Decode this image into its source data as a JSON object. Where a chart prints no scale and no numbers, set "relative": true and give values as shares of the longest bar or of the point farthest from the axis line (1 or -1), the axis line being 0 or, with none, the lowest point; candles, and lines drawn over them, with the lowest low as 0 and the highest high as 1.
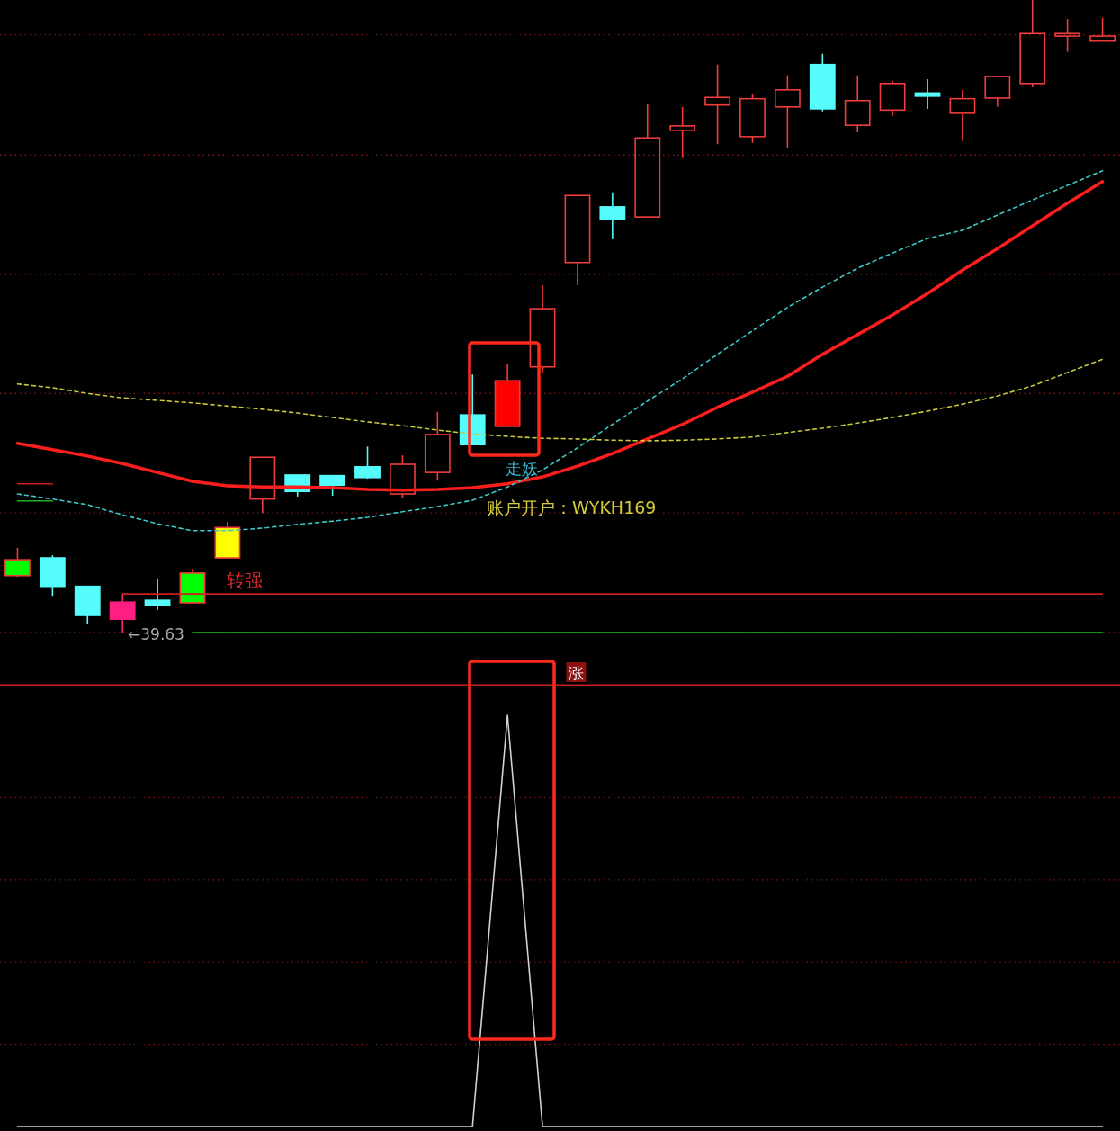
{
  "chart_data": [
    {
      "type": "candlestick",
      "relative": true,
      "categories": [
        null,
        null,
        null,
        null,
        null,
        null,
        null,
        null,
        null,
        null,
        null,
        null,
        null,
        null,
        null,
        null,
        null,
        null,
        null,
        null,
        null,
        null,
        null,
        null,
        null,
        null,
        null,
        null,
        null,
        null,
        null,
        null
      ],
      "ohlc": [
        [
          0.09,
          0.134,
          0.088,
          0.115
        ],
        [
          0.118,
          0.122,
          0.058,
          0.073
        ],
        [
          0.073,
          0.073,
          0.014,
          0.027
        ],
        [
          0.048,
          0.06,
          0,
          0.021
        ],
        [
          0.051,
          0.084,
          0.036,
          0.043
        ],
        [
          0.047,
          0.101,
          0.047,
          0.094
        ],
        [
          0.118,
          0.175,
          0.118,
          0.166
        ],
        [
          0.211,
          0.277,
          0.189,
          0.277
        ],
        [
          0.249,
          0.249,
          0.215,
          0.223
        ],
        [
          0.248,
          0.249,
          0.216,
          0.233
        ],
        [
          0.262,
          0.294,
          0.243,
          0.245
        ],
        [
          0.219,
          0.28,
          0.213,
          0.266
        ],
        [
          0.253,
          0.349,
          0.24,
          0.313
        ],
        [
          0.344,
          0.408,
          0.297,
          0.297
        ],
        [
          0.326,
          0.424,
          0.326,
          0.398
        ],
        [
          0.42,
          0.549,
          0.41,
          0.512
        ],
        [
          0.585,
          0.691,
          0.549,
          0.691
        ],
        [
          0.673,
          0.696,
          0.622,
          0.653
        ],
        [
          0.657,
          0.835,
          0.657,
          0.782
        ],
        [
          0.794,
          0.831,
          0.75,
          0.801
        ],
        [
          0.834,
          0.898,
          0.772,
          0.846
        ],
        [
          0.784,
          0.851,
          0.774,
          0.844
        ],
        [
          0.831,
          0.881,
          0.767,
          0.858
        ],
        [
          0.898,
          0.915,
          0.824,
          0.828
        ],
        [
          0.802,
          0.881,
          0.791,
          0.841
        ],
        [
          0.826,
          0.872,
          0.817,
          0.868
        ],
        [
          0.853,
          0.875,
          0.828,
          0.848
        ],
        [
          0.821,
          0.858,
          0.777,
          0.844
        ],
        [
          0.845,
          0.879,
          0.831,
          0.879
        ],
        [
          0.868,
          1,
          0.862,
          0.947
        ],
        [
          0.943,
          0.97,
          0.918,
          0.947
        ],
        [
          0.935,
          0.972,
          0.935,
          0.943
        ]
      ],
      "color": "#f03c3c",
      "colors": [
        "#00ff00",
        "#54fcfc",
        "#54fcfc",
        "#ff1e82",
        "#54fcfc",
        "#00ff00",
        "#ffff00",
        null,
        "#54fcfc",
        "#54fcfc",
        "#54fcfc",
        null,
        null,
        "#54fcfc",
        "#ff0000",
        null,
        null,
        "#54fcfc",
        null,
        null,
        null,
        null,
        null,
        "#54fcfc",
        null,
        null,
        "#54fcfc",
        null,
        null,
        null,
        null,
        null
      ],
      "series": [
        {
          "type": "line",
          "color": "#ff1e1e",
          "values": [
            0.299,
            0.289,
            0.279,
            0.267,
            0.253,
            0.239,
            0.232,
            0.23,
            0.23,
            0.229,
            0.226,
            0.225,
            0.226,
            0.229,
            0.235,
            0.246,
            0.263,
            0.283,
            0.306,
            0.329,
            0.356,
            0.38,
            0.405,
            0.44,
            0.471,
            0.502,
            0.536,
            0.573,
            0.607,
            0.643,
            0.679,
            0.713
          ]
        },
        {
          "type": "line",
          "color": "#3cc8c8",
          "line_style": "dashed",
          "values": [
            0.219,
            0.211,
            0.202,
            0.186,
            0.172,
            0.161,
            0.161,
            0.165,
            0.171,
            0.176,
            0.182,
            0.191,
            0.199,
            0.209,
            0.23,
            0.257,
            0.292,
            0.329,
            0.366,
            0.401,
            0.44,
            0.477,
            0.514,
            0.546,
            0.576,
            0.6,
            0.623,
            0.636,
            0.66,
            0.684,
            0.707,
            0.73
          ]
        },
        {
          "type": "line",
          "color": "#c8c83c",
          "line_style": "dashed",
          "values": [
            0.393,
            0.387,
            0.378,
            0.371,
            0.367,
            0.363,
            0.358,
            0.353,
            0.347,
            0.34,
            0.333,
            0.327,
            0.32,
            0.314,
            0.31,
            0.307,
            0.306,
            0.304,
            0.303,
            0.304,
            0.306,
            0.309,
            0.316,
            0.323,
            0.331,
            0.34,
            0.35,
            0.361,
            0.374,
            0.39,
            0.411,
            0.432
          ]
        },
        {
          "type": "line",
          "color": "#d02020",
          "values": [
            0.235,
            0.235,
            null,
            null,
            null,
            null,
            null,
            null,
            null,
            null,
            null,
            null,
            null,
            null,
            null,
            null,
            null,
            null,
            null,
            null,
            null,
            null,
            null,
            null,
            null,
            null,
            null,
            null,
            null,
            null,
            null,
            null
          ]
        },
        {
          "type": "line",
          "color": "#20b020",
          "values": [
            0.208,
            0.208,
            null,
            null,
            null,
            null,
            null,
            null,
            null,
            null,
            null,
            null,
            null,
            null,
            null,
            null,
            null,
            null,
            null,
            null,
            null,
            null,
            null,
            null,
            null,
            null,
            null,
            null,
            null,
            null,
            null,
            null
          ]
        },
        {
          "type": "line",
          "color": "#d01e1e",
          "values": [
            null,
            null,
            null,
            0.061,
            0.061,
            0.061,
            0.061,
            0.061,
            0.061,
            0.061,
            0.061,
            0.061,
            0.061,
            0.061,
            0.061,
            0.061,
            0.061,
            0.061,
            0.061,
            0.061,
            0.061,
            0.061,
            0.061,
            0.061,
            0.061,
            0.061,
            0.061,
            0.061,
            0.061,
            0.061,
            0.061,
            0.061
          ]
        },
        {
          "type": "line",
          "color": "#10c010",
          "values": [
            null,
            null,
            null,
            null,
            null,
            0,
            0,
            0,
            0,
            0,
            0,
            0,
            0,
            0,
            0,
            0,
            0,
            0,
            0,
            0,
            0,
            0,
            0,
            0,
            0,
            0,
            0,
            0,
            0,
            0,
            0,
            0
          ]
        }
      ],
      "ref_lines": [
        {
          "axis": "y",
          "value": 0.945,
          "color": "#7a1616",
          "line_style": "dotted"
        },
        {
          "axis": "y",
          "value": 0.755,
          "color": "#7a1616",
          "line_style": "dotted"
        },
        {
          "axis": "y",
          "value": 0.566,
          "color": "#7a1616",
          "line_style": "dotted"
        },
        {
          "axis": "y",
          "value": 0.378,
          "color": "#7a1616",
          "line_style": "dotted"
        },
        {
          "axis": "y",
          "value": 0.189,
          "color": "#7a1616",
          "line_style": "dotted"
        },
        {
          "axis": "y",
          "value": 0,
          "color": "#7a1616",
          "line_style": "dotted"
        }
      ],
      "annotations": [
        "转强",
        "走妖",
        "账户开户：WYKH169",
        "←39.63"
      ]
    },
    {
      "type": "line",
      "relative": true,
      "categories": [
        null,
        null,
        null,
        null,
        null,
        null,
        null,
        null,
        null,
        null,
        null,
        null,
        null,
        null,
        null,
        null,
        null,
        null,
        null,
        null,
        null,
        null,
        null,
        null,
        null,
        null,
        null,
        null,
        null,
        null,
        null,
        null
      ],
      "series": [
        {
          "color": "#d2d2d2",
          "values": [
            0,
            0,
            0,
            0,
            0,
            0,
            0,
            0,
            0,
            0,
            0,
            0,
            0,
            0,
            1,
            0,
            0,
            0,
            0,
            0,
            0,
            0,
            0,
            0,
            0,
            0,
            0,
            0,
            0,
            0,
            0,
            0
          ]
        }
      ],
      "ref_lines": [
        {
          "axis": "y",
          "value": 1.074,
          "color": "#c81e1e"
        },
        {
          "axis": "y",
          "value": 0.8,
          "color": "#7a1616",
          "line_style": "dotted"
        },
        {
          "axis": "y",
          "value": 0.6,
          "color": "#7a1616",
          "line_style": "dotted"
        },
        {
          "axis": "y",
          "value": 0.4,
          "color": "#7a1616",
          "line_style": "dotted"
        },
        {
          "axis": "y",
          "value": 0.2,
          "color": "#7a1616",
          "line_style": "dotted"
        }
      ],
      "annotations": [
        "涨"
      ]
    }
  ]
}
